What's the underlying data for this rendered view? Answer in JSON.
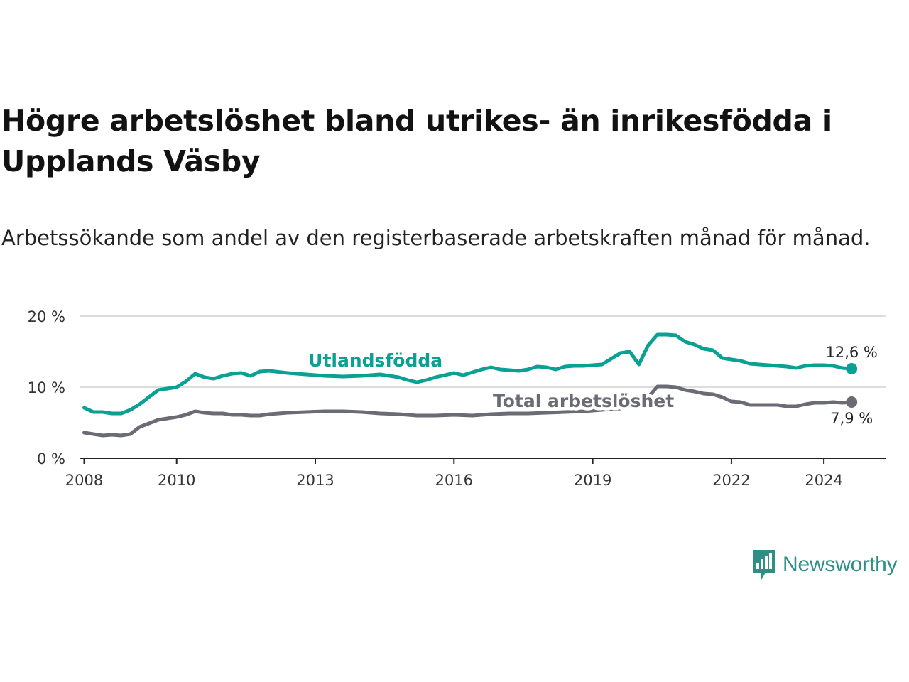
{
  "title": "Högre arbetslöshet bland utrikes- än inrikesfödda i Upplands Väsby",
  "subtitle": "Arbetssökande som andel av den registerbaserade arbetskraften månad för månad.",
  "brand": {
    "name": "Newsworthy",
    "icon": "newsworthy-logo-icon"
  },
  "colors": {
    "foreign": "#0aa093",
    "total": "#6b6b75",
    "grid": "#dddddd",
    "axis": "#222222"
  },
  "chart_data": {
    "type": "line",
    "title": "Högre arbetslöshet bland utrikes- än inrikesfödda i Upplands Väsby",
    "xlabel": "",
    "ylabel": "",
    "xlim": [
      2007.9,
      2025.35
    ],
    "ylim": [
      0,
      20
    ],
    "grid": true,
    "y_ticks": [
      {
        "value": 0,
        "label": "0 %"
      },
      {
        "value": 10,
        "label": "10 %"
      },
      {
        "value": 20,
        "label": "20 %"
      }
    ],
    "x_ticks": [
      {
        "value": 2008,
        "label": "2008"
      },
      {
        "value": 2010,
        "label": "2010"
      },
      {
        "value": 2013,
        "label": "2013"
      },
      {
        "value": 2016,
        "label": "2016"
      },
      {
        "value": 2019,
        "label": "2019"
      },
      {
        "value": 2022,
        "label": "2022"
      },
      {
        "value": 2024,
        "label": "2024"
      }
    ],
    "series": [
      {
        "name": "Utlandsfödda",
        "color": "#0aa093",
        "x": [
          2008.0,
          2008.2,
          2008.4,
          2008.6,
          2008.8,
          2009.0,
          2009.2,
          2009.4,
          2009.6,
          2009.8,
          2010.0,
          2010.2,
          2010.4,
          2010.6,
          2010.8,
          2011.0,
          2011.2,
          2011.4,
          2011.6,
          2011.8,
          2012.0,
          2012.4,
          2012.8,
          2013.2,
          2013.6,
          2014.0,
          2014.4,
          2014.8,
          2015.0,
          2015.2,
          2015.4,
          2015.6,
          2015.8,
          2016.0,
          2016.2,
          2016.4,
          2016.6,
          2016.8,
          2017.0,
          2017.2,
          2017.4,
          2017.6,
          2017.8,
          2018.0,
          2018.2,
          2018.4,
          2018.6,
          2018.8,
          2019.0,
          2019.2,
          2019.4,
          2019.6,
          2019.8,
          2020.0,
          2020.2,
          2020.4,
          2020.6,
          2020.8,
          2021.0,
          2021.2,
          2021.4,
          2021.6,
          2021.8,
          2022.0,
          2022.2,
          2022.4,
          2022.6,
          2022.8,
          2023.0,
          2023.2,
          2023.4,
          2023.6,
          2023.8,
          2024.0,
          2024.2,
          2024.4,
          2024.6
        ],
        "values": [
          7.1,
          6.5,
          6.5,
          6.3,
          6.3,
          6.8,
          7.6,
          8.6,
          9.6,
          9.8,
          10.0,
          10.8,
          11.9,
          11.4,
          11.2,
          11.6,
          11.9,
          12.0,
          11.6,
          12.2,
          12.3,
          12.0,
          11.8,
          11.6,
          11.5,
          11.6,
          11.8,
          11.4,
          11.0,
          10.7,
          11.0,
          11.4,
          11.7,
          12.0,
          11.7,
          12.1,
          12.5,
          12.8,
          12.5,
          12.4,
          12.3,
          12.5,
          12.9,
          12.8,
          12.5,
          12.9,
          13.0,
          13.0,
          13.1,
          13.2,
          14.0,
          14.8,
          15.0,
          13.2,
          15.9,
          17.4,
          17.4,
          17.3,
          16.4,
          16.0,
          15.4,
          15.2,
          14.1,
          13.9,
          13.7,
          13.3,
          13.2,
          13.1,
          13.0,
          12.9,
          12.7,
          13.0,
          13.1,
          13.1,
          13.0,
          12.7,
          12.6
        ]
      },
      {
        "name": "Total arbetslöshet",
        "color": "#6b6b75",
        "x": [
          2008.0,
          2008.2,
          2008.4,
          2008.6,
          2008.8,
          2009.0,
          2009.2,
          2009.4,
          2009.6,
          2009.8,
          2010.0,
          2010.2,
          2010.4,
          2010.6,
          2010.8,
          2011.0,
          2011.2,
          2011.4,
          2011.6,
          2011.8,
          2012.0,
          2012.4,
          2012.8,
          2013.2,
          2013.6,
          2014.0,
          2014.4,
          2014.8,
          2015.2,
          2015.6,
          2016.0,
          2016.4,
          2016.8,
          2017.2,
          2017.6,
          2018.0,
          2018.4,
          2018.8,
          2019.2,
          2019.6,
          2019.8,
          2020.0,
          2020.2,
          2020.4,
          2020.6,
          2020.8,
          2021.0,
          2021.2,
          2021.4,
          2021.6,
          2021.8,
          2022.0,
          2022.2,
          2022.4,
          2022.6,
          2022.8,
          2023.0,
          2023.2,
          2023.4,
          2023.6,
          2023.8,
          2024.0,
          2024.2,
          2024.4,
          2024.6
        ],
        "values": [
          3.6,
          3.4,
          3.2,
          3.3,
          3.2,
          3.4,
          4.4,
          4.9,
          5.4,
          5.6,
          5.8,
          6.1,
          6.6,
          6.4,
          6.3,
          6.3,
          6.1,
          6.1,
          6.0,
          6.0,
          6.2,
          6.4,
          6.5,
          6.6,
          6.6,
          6.5,
          6.3,
          6.2,
          6.0,
          6.0,
          6.1,
          6.0,
          6.2,
          6.3,
          6.3,
          6.4,
          6.5,
          6.6,
          6.8,
          7.0,
          7.2,
          7.3,
          8.6,
          10.1,
          10.1,
          10.0,
          9.6,
          9.4,
          9.1,
          9.0,
          8.6,
          8.0,
          7.9,
          7.5,
          7.5,
          7.5,
          7.5,
          7.3,
          7.3,
          7.6,
          7.8,
          7.8,
          7.9,
          7.8,
          7.9
        ]
      }
    ],
    "series_labels": [
      {
        "series": "Utlandsfödda",
        "text": "Utlandsfödda",
        "x": 2014.3,
        "y": 12.9
      },
      {
        "series": "Total arbetslöshet",
        "text": "Total arbetslöshet",
        "x": 2018.8,
        "y": 7.2
      }
    ],
    "end_labels": [
      {
        "series": "Utlandsfödda",
        "text": "12,6 %",
        "value": 12.6
      },
      {
        "series": "Total arbetslöshet",
        "text": "7,9 %",
        "value": 7.9
      }
    ]
  }
}
